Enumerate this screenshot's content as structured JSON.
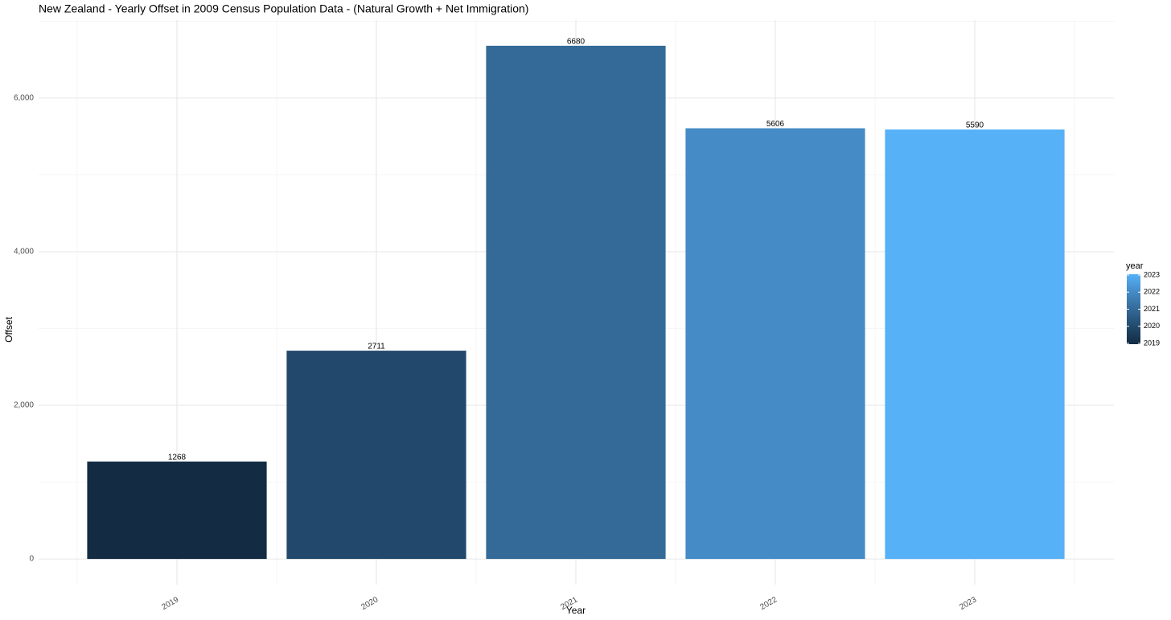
{
  "chart_data": {
    "type": "bar",
    "title": "New Zealand - Yearly Offset in 2009 Census Population Data - (Natural Growth + Net Immigration)",
    "x_label": "Year",
    "y_label": "Offset",
    "categories": [
      "2019",
      "2020",
      "2021",
      "2022",
      "2023"
    ],
    "values": [
      1268,
      2711,
      6680,
      5606,
      5590
    ],
    "colors": [
      "#132b43",
      "#22496b",
      "#346a98",
      "#458bc6",
      "#56b1f7"
    ],
    "ylim": [
      -334,
      7014
    ],
    "yticks": [
      0,
      {
        "value": 2000,
        "label": "2,000"
      },
      {
        "value": 4000,
        "label": "4,000"
      },
      {
        "value": 6000,
        "label": "6,000"
      }
    ],
    "grid": true,
    "legend": {
      "title": "year",
      "position": "right"
    }
  }
}
